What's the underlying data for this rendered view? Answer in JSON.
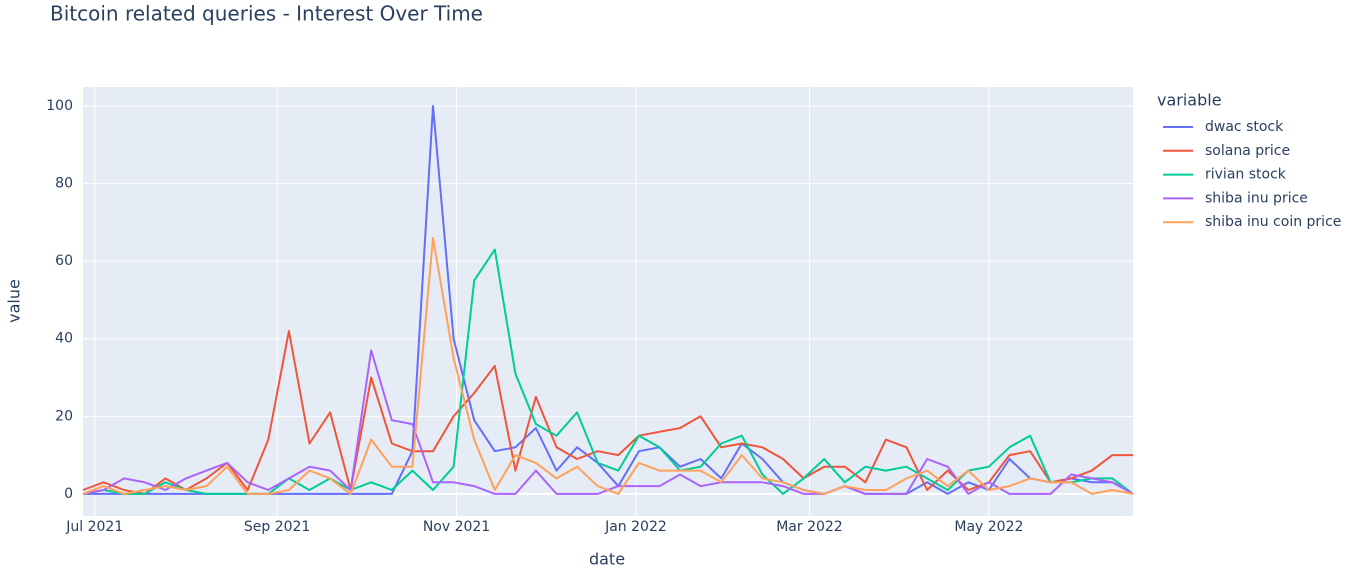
{
  "chart_data": {
    "type": "line",
    "title": "Bitcoin related queries - Interest Over Time",
    "xlabel": "date",
    "ylabel": "value",
    "legend_title": "variable",
    "legend": "right",
    "grid": true,
    "x": [
      "2021-06-27",
      "2021-07-04",
      "2021-07-11",
      "2021-07-18",
      "2021-07-25",
      "2021-08-01",
      "2021-08-08",
      "2021-08-15",
      "2021-08-22",
      "2021-08-29",
      "2021-09-05",
      "2021-09-12",
      "2021-09-19",
      "2021-09-26",
      "2021-10-03",
      "2021-10-10",
      "2021-10-17",
      "2021-10-24",
      "2021-10-31",
      "2021-11-07",
      "2021-11-14",
      "2021-11-21",
      "2021-11-28",
      "2021-12-05",
      "2021-12-12",
      "2021-12-19",
      "2021-12-26",
      "2022-01-02",
      "2022-01-09",
      "2022-01-16",
      "2022-01-23",
      "2022-01-30",
      "2022-02-06",
      "2022-02-13",
      "2022-02-20",
      "2022-02-27",
      "2022-03-06",
      "2022-03-13",
      "2022-03-20",
      "2022-03-27",
      "2022-04-03",
      "2022-04-10",
      "2022-04-17",
      "2022-04-24",
      "2022-05-01",
      "2022-05-08",
      "2022-05-15",
      "2022-05-22",
      "2022-05-29",
      "2022-06-05",
      "2022-06-12",
      "2022-06-19"
    ],
    "xlim": [
      "2021-06-27",
      "2022-06-19"
    ],
    "xticks": [
      {
        "value": "2021-07-01",
        "label": "Jul 2021"
      },
      {
        "value": "2021-09-01",
        "label": "Sep 2021"
      },
      {
        "value": "2021-11-01",
        "label": "Nov 2021"
      },
      {
        "value": "2022-01-01",
        "label": "Jan 2022"
      },
      {
        "value": "2022-03-01",
        "label": "Mar 2022"
      },
      {
        "value": "2022-05-01",
        "label": "May 2022"
      }
    ],
    "ylim": [
      -5.7,
      104.9
    ],
    "yticks": [
      0,
      20,
      40,
      60,
      80,
      100
    ],
    "series": [
      {
        "name": "dwac stock",
        "color": "#636efa",
        "values": [
          0,
          0,
          0,
          0,
          0,
          0,
          0,
          0,
          0,
          0,
          0,
          0,
          0,
          0,
          0,
          0,
          11,
          100,
          40,
          19,
          11,
          12,
          17,
          6,
          12,
          8,
          2,
          11,
          12,
          7,
          9,
          4,
          13,
          9,
          3,
          1,
          0,
          2,
          0,
          0,
          0,
          3,
          0,
          3,
          1,
          9,
          4,
          3,
          4,
          3,
          3,
          0
        ]
      },
      {
        "name": "solana price",
        "color": "#EF553B",
        "values": [
          1,
          3,
          1,
          0,
          4,
          1,
          4,
          8,
          1,
          14,
          42,
          13,
          21,
          1,
          30,
          13,
          11,
          11,
          20,
          26,
          33,
          6,
          25,
          12,
          9,
          11,
          10,
          15,
          16,
          17,
          20,
          12,
          13,
          12,
          9,
          4,
          7,
          7,
          3,
          14,
          12,
          1,
          6,
          1,
          3,
          10,
          11,
          3,
          4,
          6,
          10,
          10
        ]
      },
      {
        "name": "rivian stock",
        "color": "#00cc96",
        "values": [
          0,
          1,
          0,
          0,
          3,
          1,
          0,
          0,
          0,
          0,
          4,
          1,
          4,
          1,
          3,
          1,
          6,
          1,
          7,
          55,
          63,
          31,
          18,
          15,
          21,
          8,
          6,
          15,
          12,
          6,
          7,
          13,
          15,
          5,
          0,
          4,
          9,
          3,
          7,
          6,
          7,
          4,
          1,
          6,
          7,
          12,
          15,
          3,
          3,
          4,
          4,
          0
        ]
      },
      {
        "name": "shiba inu price",
        "color": "#ab63fa",
        "values": [
          0,
          1,
          4,
          3,
          1,
          4,
          6,
          8,
          3,
          1,
          4,
          7,
          6,
          1,
          37,
          19,
          18,
          3,
          3,
          2,
          0,
          0,
          6,
          0,
          0,
          0,
          2,
          2,
          2,
          5,
          2,
          3,
          3,
          3,
          2,
          0,
          0,
          2,
          0,
          0,
          0,
          9,
          7,
          0,
          3,
          0,
          0,
          0,
          5,
          4,
          3,
          0
        ]
      },
      {
        "name": "shiba inu coin price",
        "color": "#FFA15A",
        "values": [
          0,
          2,
          0,
          1,
          2,
          1,
          2,
          7,
          0,
          0,
          1,
          6,
          4,
          0,
          14,
          7,
          7,
          66,
          35,
          14,
          1,
          10,
          8,
          4,
          7,
          2,
          0,
          8,
          6,
          6,
          6,
          3,
          10,
          4,
          3,
          1,
          0,
          2,
          1,
          1,
          4,
          6,
          2,
          6,
          1,
          2,
          4,
          3,
          3,
          0,
          1,
          0
        ]
      }
    ]
  }
}
